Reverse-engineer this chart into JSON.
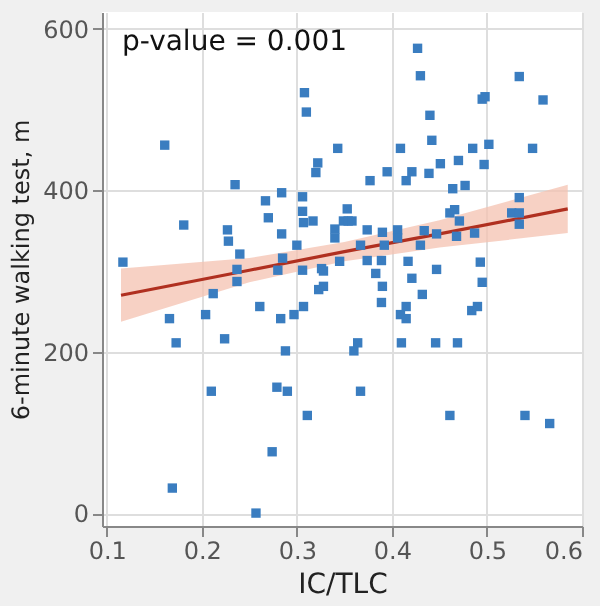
{
  "chart_data": {
    "type": "scatter",
    "xlabel": "IC/TLC",
    "ylabel": "6-minute walking test, m",
    "annotations": [
      "p-value = 0.001"
    ],
    "xlim": [
      0.095,
      0.6
    ],
    "xticks": [
      0.1,
      0.2,
      0.3,
      0.4,
      0.5,
      0.6
    ],
    "ylim": [
      -16,
      621
    ],
    "yticks": [
      0,
      200,
      400,
      600
    ],
    "grid": true,
    "marker": "square",
    "series": [
      {
        "color": "#3a7dc0",
        "x": [
          0.117,
          0.161,
          0.181,
          0.235,
          0.227,
          0.228,
          0.24,
          0.237,
          0.237,
          0.212,
          0.267,
          0.27,
          0.284,
          0.284,
          0.285,
          0.28,
          0.3,
          0.306,
          0.306,
          0.307,
          0.306,
          0.317,
          0.308,
          0.31,
          0.322,
          0.32,
          0.343,
          0.34,
          0.34,
          0.326,
          0.328,
          0.323,
          0.328,
          0.345,
          0.349,
          0.353,
          0.354,
          0.358,
          0.374,
          0.367,
          0.377,
          0.395,
          0.39,
          0.392,
          0.389,
          0.374,
          0.383,
          0.39,
          0.409,
          0.415,
          0.421,
          0.406,
          0.406,
          0.417,
          0.421,
          0.432,
          0.427,
          0.43,
          0.44,
          0.442,
          0.439,
          0.451,
          0.434,
          0.43,
          0.447,
          0.447,
          0.47,
          0.461,
          0.464,
          0.466,
          0.471,
          0.468,
          0.477,
          0.485,
          0.487,
          0.495,
          0.498,
          0.502,
          0.497,
          0.493,
          0.495,
          0.534,
          0.559,
          0.548,
          0.534,
          0.526,
          0.534,
          0.534,
          0.166,
          0.173,
          0.204,
          0.224,
          0.21,
          0.261,
          0.283,
          0.297,
          0.307,
          0.288,
          0.279,
          0.29,
          0.311,
          0.274,
          0.169,
          0.257,
          0.36,
          0.364,
          0.367,
          0.389,
          0.409,
          0.415,
          0.415,
          0.41,
          0.446,
          0.469,
          0.461,
          0.484,
          0.49,
          0.54,
          0.566
        ],
        "values": [
          311,
          456,
          357,
          407,
          351,
          337,
          321,
          302,
          287,
          272,
          387,
          366,
          397,
          346,
          316,
          301,
          332,
          392,
          374,
          360,
          301,
          362,
          521,
          497,
          434,
          422,
          452,
          352,
          341,
          303,
          300,
          277,
          281,
          312,
          362,
          377,
          362,
          362,
          351,
          332,
          412,
          423,
          348,
          332,
          313,
          313,
          297,
          281,
          452,
          412,
          423,
          351,
          341,
          312,
          291,
          271,
          576,
          542,
          493,
          462,
          421,
          433,
          350,
          332,
          302,
          346,
          437,
          372,
          402,
          376,
          362,
          343,
          406,
          452,
          347,
          513,
          516,
          457,
          432,
          311,
          286,
          541,
          512,
          452,
          391,
          372,
          372,
          358,
          241,
          211,
          246,
          216,
          151,
          256,
          241,
          246,
          256,
          201,
          156,
          151,
          121,
          76,
          31,
          0,
          201,
          211,
          151,
          261,
          246,
          256,
          241,
          211,
          211,
          211,
          121,
          251,
          256,
          121,
          111
        ]
      },
      {
        "type": "line",
        "color": "#b03020",
        "marker": "none",
        "x": [
          0.115,
          0.25,
          0.35,
          0.45,
          0.585
        ],
        "values": [
          270,
          301,
          324,
          346,
          377
        ],
        "lower": [
          237,
          286,
          312,
          329,
          347
        ],
        "upper": [
          303,
          316,
          336,
          363,
          407
        ]
      }
    ]
  }
}
